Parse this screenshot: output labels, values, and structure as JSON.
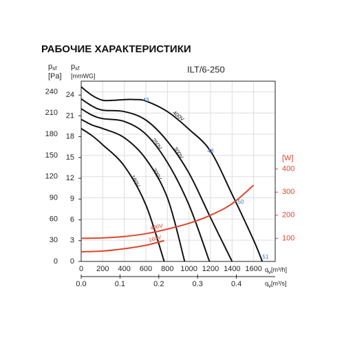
{
  "chart_data": {
    "type": "line",
    "title": "РАБОЧИЕ ХАРАКТЕРИСТИКИ",
    "subtitle": "ILT/6-250",
    "y_label": {
      "symbol": "p",
      "sub": "sf",
      "unit": "[Pa]"
    },
    "y3_label": {
      "symbol": "p",
      "sub": "sf",
      "unit": "[mmWG]"
    },
    "y2_label": "[W]",
    "x_label": {
      "symbol": "q",
      "sub": "v",
      "unit": "[m³/h]"
    },
    "x2_label": {
      "symbol": "q",
      "sub": "v",
      "unit": "[m³/s]"
    },
    "xlim": [
      0,
      1800
    ],
    "xticks": [
      0,
      200,
      400,
      600,
      800,
      1000,
      1200,
      1400,
      1600
    ],
    "x2lim": [
      0,
      0.5
    ],
    "x2ticks": [
      {
        "value": 0,
        "label": "0.0"
      },
      0.1,
      0.2,
      0.3,
      0.4
    ],
    "ylim": [
      0,
      255
    ],
    "yticks": [
      0,
      30,
      60,
      90,
      120,
      150,
      180,
      210,
      240
    ],
    "y3lim": [
      0,
      26
    ],
    "y3ticks": [
      0,
      3,
      6,
      9,
      12,
      15,
      18,
      21,
      24
    ],
    "y2lim": [
      0,
      780
    ],
    "y2ticks": [
      100,
      200,
      300,
      400
    ],
    "y2_color": "#e0442c",
    "grid": true,
    "series": [
      {
        "name": "400V",
        "color": "#111111",
        "x": [
          0,
          100,
          200,
          300,
          400,
          500,
          600,
          800,
          1000,
          1200,
          1400,
          1600,
          1680
        ],
        "values": [
          247,
          235,
          228,
          228,
          229,
          229,
          227,
          212,
          187,
          156,
          95,
          30,
          0
        ]
      },
      {
        "name": "300V",
        "color": "#111111",
        "x": [
          0,
          100,
          200,
          400,
          600,
          800,
          1000,
          1200,
          1400
        ],
        "values": [
          230,
          220,
          214,
          212,
          200,
          170,
          125,
          62,
          0
        ]
      },
      {
        "name": "250V",
        "color": "#111111",
        "x": [
          0,
          100,
          200,
          400,
          600,
          800,
          1000,
          1190
        ],
        "values": [
          216,
          207,
          202,
          198,
          180,
          140,
          80,
          0
        ]
      },
      {
        "name": "200V",
        "color": "#111111",
        "x": [
          0,
          100,
          200,
          400,
          600,
          800,
          960
        ],
        "values": [
          201,
          193,
          188,
          175,
          145,
          90,
          0
        ]
      },
      {
        "name": "160V",
        "color": "#111111",
        "x": [
          0,
          100,
          200,
          400,
          600,
          770
        ],
        "values": [
          188,
          178,
          165,
          135,
          80,
          0
        ]
      },
      {
        "name": "400V",
        "color": "#e0442c",
        "axis": "y2",
        "x": [
          0,
          200,
          400,
          600,
          800,
          1000,
          1200,
          1400,
          1600
        ],
        "values": [
          100,
          102,
          108,
          120,
          140,
          165,
          200,
          250,
          330
        ]
      },
      {
        "name": "160V",
        "color": "#e0442c",
        "axis": "y2",
        "x": [
          0,
          200,
          400,
          600,
          770
        ],
        "values": [
          42,
          45,
          55,
          70,
          90
        ]
      }
    ],
    "annotations": [
      "43",
      "48",
      "50",
      "51"
    ],
    "annotation_color": "#3a6fc4"
  }
}
